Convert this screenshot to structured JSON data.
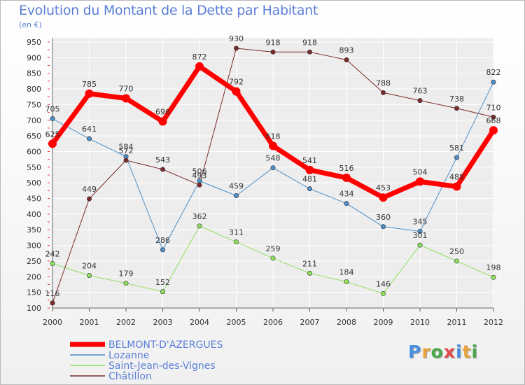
{
  "title": "Evolution du Montant de la Dette par Habitant",
  "unit": "(en €)",
  "logo": "Proxiti",
  "chart_data": {
    "type": "line",
    "title": "Evolution du Montant de la Dette par Habitant",
    "subtitle": "(en €)",
    "categories": [
      "2000",
      "2001",
      "2002",
      "2003",
      "2004",
      "2005",
      "2006",
      "2007",
      "2008",
      "2009",
      "2010",
      "2011",
      "2012"
    ],
    "ylim": [
      100,
      950
    ],
    "yticks": [
      100,
      150,
      200,
      250,
      300,
      350,
      400,
      450,
      500,
      550,
      600,
      650,
      700,
      750,
      800,
      850,
      900,
      950
    ],
    "grid": true,
    "legend_position": "bottom-left",
    "series": [
      {
        "name": "BELMONT-D'AZERGUES",
        "color": "#ff0000",
        "width": 7,
        "values": [
          625,
          785,
          770,
          696,
          872,
          792,
          618,
          541,
          516,
          453,
          504,
          488,
          668
        ]
      },
      {
        "name": "Lozanne",
        "color": "#4d8fc9",
        "width": 1,
        "values": [
          705,
          641,
          584,
          286,
          506,
          459,
          548,
          481,
          434,
          360,
          345,
          581,
          822
        ]
      },
      {
        "name": "Saint-Jean-des-Vignes",
        "color": "#8fe05c",
        "width": 1,
        "values": [
          242,
          204,
          179,
          152,
          362,
          311,
          259,
          211,
          184,
          146,
          301,
          250,
          198
        ]
      },
      {
        "name": "Châtillon",
        "color": "#7a2b2b",
        "width": 1,
        "values": [
          116,
          449,
          572,
          543,
          493,
          930,
          918,
          918,
          893,
          788,
          763,
          738,
          710
        ]
      }
    ]
  }
}
